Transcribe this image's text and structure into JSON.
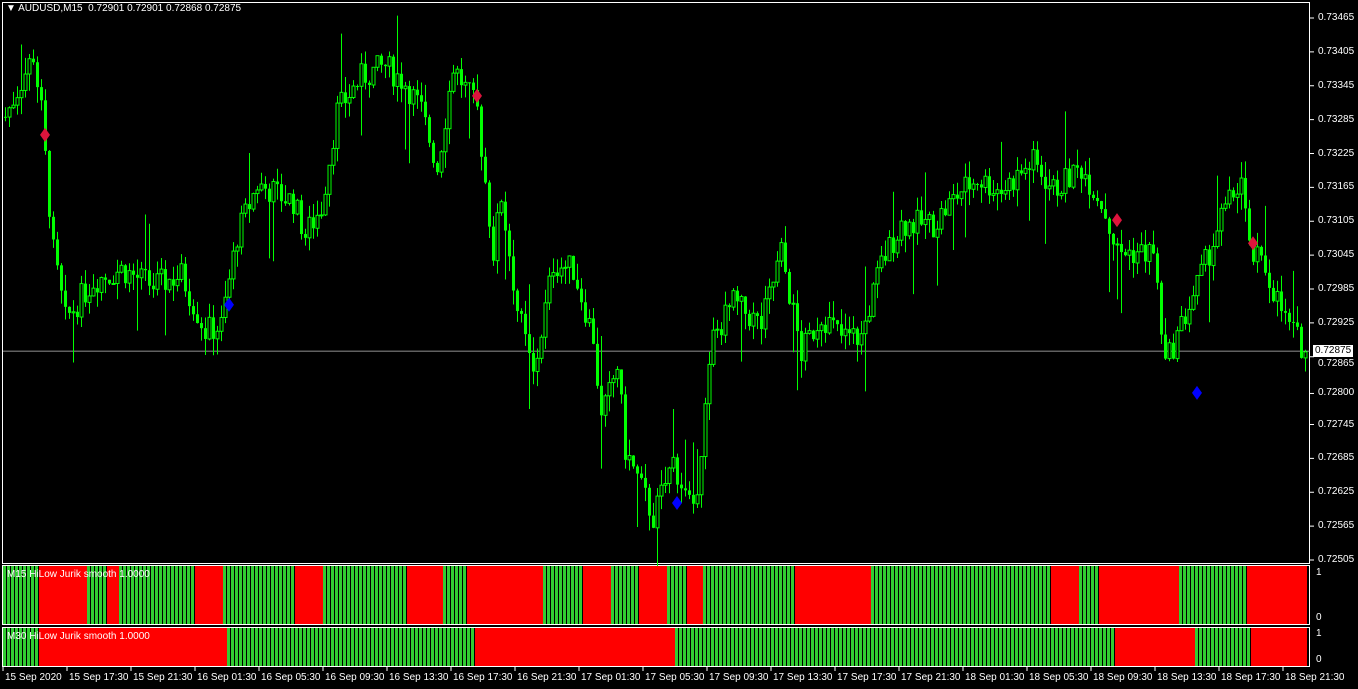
{
  "header": {
    "symbol": "AUDUSD,M15",
    "ohlc": "0.72901 0.72901 0.72868 0.72875"
  },
  "current_price": "0.72875",
  "chart_data": {
    "type": "candlestick",
    "candle_color": "#00ff00",
    "price_ticks": [
      "0.73465",
      "0.73405",
      "0.73345",
      "0.73285",
      "0.73225",
      "0.73165",
      "0.73105",
      "0.73045",
      "0.72985",
      "0.72925",
      "0.72865",
      "0.72800",
      "0.72745",
      "0.72685",
      "0.72625",
      "0.72565",
      "0.72505"
    ],
    "ylim": [
      0.72505,
      0.73465
    ],
    "time_ticks": [
      "15 Sep 2020",
      "15 Sep 17:30",
      "15 Sep 21:30",
      "16 Sep 01:30",
      "16 Sep 05:30",
      "16 Sep 09:30",
      "16 Sep 13:30",
      "16 Sep 17:30",
      "16 Sep 21:30",
      "17 Sep 01:30",
      "17 Sep 05:30",
      "17 Sep 09:30",
      "17 Sep 13:30",
      "17 Sep 17:30",
      "17 Sep 21:30",
      "18 Sep 01:30",
      "18 Sep 05:30",
      "18 Sep 09:30",
      "18 Sep 13:30",
      "18 Sep 17:30",
      "18 Sep 21:30"
    ],
    "price_path": [
      [
        0,
        0.7329
      ],
      [
        7,
        0.734
      ],
      [
        9,
        0.733
      ],
      [
        12,
        0.7305
      ],
      [
        15,
        0.7293
      ],
      [
        22,
        0.73
      ],
      [
        29,
        0.7302
      ],
      [
        37,
        0.7299
      ],
      [
        44,
        0.7301
      ],
      [
        50,
        0.7291
      ],
      [
        54,
        0.7292
      ],
      [
        58,
        0.7308
      ],
      [
        63,
        0.7317
      ],
      [
        72,
        0.7314
      ],
      [
        75,
        0.7308
      ],
      [
        79,
        0.7313
      ],
      [
        83,
        0.733
      ],
      [
        89,
        0.7336
      ],
      [
        95,
        0.7338
      ],
      [
        100,
        0.7335
      ],
      [
        104,
        0.733
      ],
      [
        108,
        0.732
      ],
      [
        112,
        0.7338
      ],
      [
        118,
        0.733
      ],
      [
        122,
        0.7305
      ],
      [
        124,
        0.7315
      ],
      [
        128,
        0.7295
      ],
      [
        132,
        0.7283
      ],
      [
        137,
        0.7303
      ],
      [
        142,
        0.7302
      ],
      [
        147,
        0.729
      ],
      [
        149,
        0.7275
      ],
      [
        153,
        0.7285
      ],
      [
        155,
        0.727
      ],
      [
        162,
        0.7258
      ],
      [
        167,
        0.7268
      ],
      [
        172,
        0.7258
      ],
      [
        177,
        0.729
      ],
      [
        182,
        0.7296
      ],
      [
        189,
        0.7292
      ],
      [
        194,
        0.7305
      ],
      [
        199,
        0.7287
      ],
      [
        204,
        0.7294
      ],
      [
        209,
        0.729
      ],
      [
        214,
        0.729
      ],
      [
        219,
        0.7303
      ],
      [
        224,
        0.731
      ],
      [
        232,
        0.731
      ],
      [
        239,
        0.7316
      ],
      [
        243,
        0.7318
      ],
      [
        249,
        0.7316
      ],
      [
        257,
        0.7321
      ],
      [
        262,
        0.7316
      ],
      [
        269,
        0.732
      ],
      [
        274,
        0.7314
      ],
      [
        278,
        0.7305
      ],
      [
        287,
        0.7305
      ],
      [
        290,
        0.7285
      ],
      [
        294,
        0.7292
      ],
      [
        299,
        0.7301
      ],
      [
        304,
        0.7311
      ],
      [
        309,
        0.7318
      ],
      [
        311,
        0.7305
      ],
      [
        315,
        0.7302
      ],
      [
        320,
        0.7293
      ],
      [
        325,
        0.72875
      ]
    ],
    "signals": [
      {
        "bar": 10,
        "price": 0.73258,
        "type": "sell",
        "color": "#dc143c"
      },
      {
        "bar": 56,
        "price": 0.72957,
        "type": "buy",
        "color": "#0000ff"
      },
      {
        "bar": 118,
        "price": 0.73327,
        "type": "sell",
        "color": "#dc143c"
      },
      {
        "bar": 168,
        "price": 0.72606,
        "type": "buy",
        "color": "#0000ff"
      },
      {
        "bar": 278,
        "price": 0.73107,
        "type": "sell",
        "color": "#dc143c"
      },
      {
        "bar": 298,
        "price": 0.72801,
        "type": "buy",
        "color": "#0000ff"
      },
      {
        "bar": 312,
        "price": 0.73066,
        "type": "sell",
        "color": "#dc143c"
      }
    ]
  },
  "indicators": [
    {
      "label": "M15 HiLow Jurik smooth 1.0000",
      "scale_top": "1",
      "scale_bottom": "0",
      "segments": [
        [
          "g",
          9
        ],
        [
          "r",
          12
        ],
        [
          "g",
          5
        ],
        [
          "r",
          3
        ],
        [
          "g",
          19
        ],
        [
          "r",
          7
        ],
        [
          "g",
          18
        ],
        [
          "r",
          7
        ],
        [
          "g",
          21
        ],
        [
          "r",
          9
        ],
        [
          "g",
          6
        ],
        [
          "r",
          19
        ],
        [
          "g",
          10
        ],
        [
          "r",
          7
        ],
        [
          "g",
          7
        ],
        [
          "r",
          7
        ],
        [
          "g",
          5
        ],
        [
          "r",
          4
        ],
        [
          "g",
          23
        ],
        [
          "r",
          19
        ],
        [
          "g",
          45
        ],
        [
          "r",
          7
        ],
        [
          "g",
          5
        ],
        [
          "r",
          20
        ],
        [
          "g",
          17
        ],
        [
          "r",
          15
        ]
      ]
    },
    {
      "label": "M30 HiLow Jurik smooth 1.0000",
      "scale_top": "1",
      "scale_bottom": "0",
      "segments": [
        [
          "g",
          9
        ],
        [
          "r",
          47
        ],
        [
          "g",
          62
        ],
        [
          "r",
          50
        ],
        [
          "g",
          110
        ],
        [
          "r",
          20
        ],
        [
          "g",
          14
        ],
        [
          "r",
          14
        ]
      ]
    }
  ],
  "colors": {
    "bull": "#00ff00",
    "ind_green": "#32cd32",
    "ind_red": "#ff0000"
  }
}
